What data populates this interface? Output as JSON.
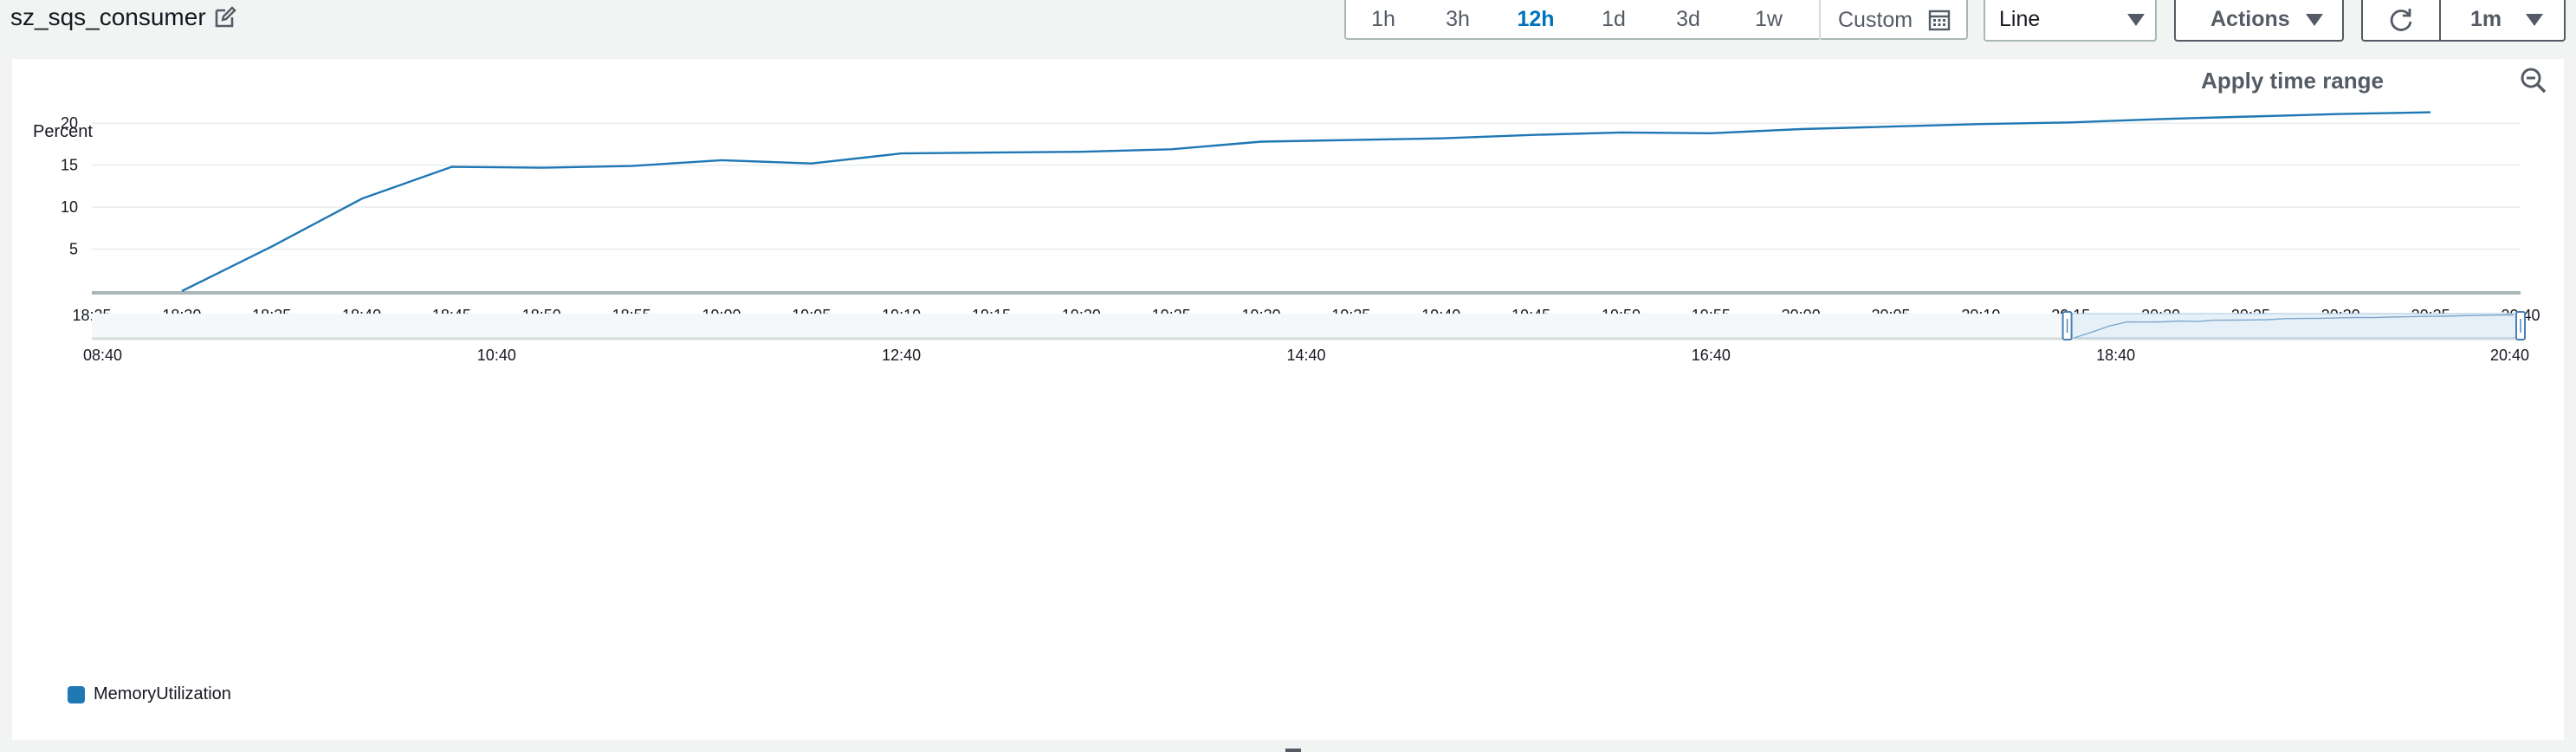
{
  "header": {
    "title": "sz_sqs_consumer",
    "edit_icon": "edit-icon"
  },
  "time_range": {
    "options": [
      {
        "label": "1h",
        "active": false
      },
      {
        "label": "3h",
        "active": false
      },
      {
        "label": "12h",
        "active": true
      },
      {
        "label": "1d",
        "active": false
      },
      {
        "label": "3d",
        "active": false
      },
      {
        "label": "1w",
        "active": false
      }
    ],
    "custom_label": "Custom",
    "custom_icon": "calendar-icon"
  },
  "graph_type": {
    "selected": "Line"
  },
  "actions": {
    "label": "Actions"
  },
  "refresh": {
    "icon": "refresh-icon",
    "interval": "1m"
  },
  "panel": {
    "apply_time_range": "Apply time range",
    "zoom_icon": "zoom-out-icon",
    "legend": {
      "label": "MemoryUtilization",
      "color": "#1f77b4"
    }
  },
  "chart_data": {
    "type": "line",
    "ylabel": "Percent",
    "y_ticks": [
      "5",
      "10",
      "15",
      "20"
    ],
    "ylim": [
      0,
      22.5
    ],
    "x_ticks": [
      "18:25",
      "18:30",
      "18:35",
      "18:40",
      "18:45",
      "18:50",
      "18:55",
      "19:00",
      "19:05",
      "19:10",
      "19:15",
      "19:20",
      "19:25",
      "19:30",
      "19:35",
      "19:40",
      "19:45",
      "19:50",
      "19:55",
      "20:00",
      "20:05",
      "20:10",
      "20:15",
      "20:20",
      "20:25",
      "20:30",
      "20:35",
      "20:40"
    ],
    "series": [
      {
        "name": "MemoryUtilization",
        "color": "#1f77b4",
        "x": [
          "18:30",
          "18:35",
          "18:40",
          "18:45",
          "18:50",
          "18:55",
          "19:00",
          "19:05",
          "19:10",
          "19:15",
          "19:20",
          "19:25",
          "19:30",
          "19:35",
          "19:40",
          "19:45",
          "19:50",
          "19:55",
          "20:00",
          "20:05",
          "20:10",
          "20:15",
          "20:20",
          "20:25",
          "20:30",
          "20:35"
        ],
        "values": [
          0,
          5.3,
          11.0,
          14.8,
          14.7,
          14.9,
          15.6,
          15.2,
          16.4,
          16.5,
          16.6,
          16.9,
          17.8,
          18.0,
          18.2,
          18.6,
          18.9,
          18.8,
          19.3,
          19.6,
          19.9,
          20.1,
          20.5,
          20.8,
          21.1,
          21.3
        ]
      }
    ],
    "navigator": {
      "x_ticks": [
        "08:40",
        "10:40",
        "12:40",
        "14:40",
        "16:40",
        "18:40",
        "20:40"
      ]
    }
  }
}
